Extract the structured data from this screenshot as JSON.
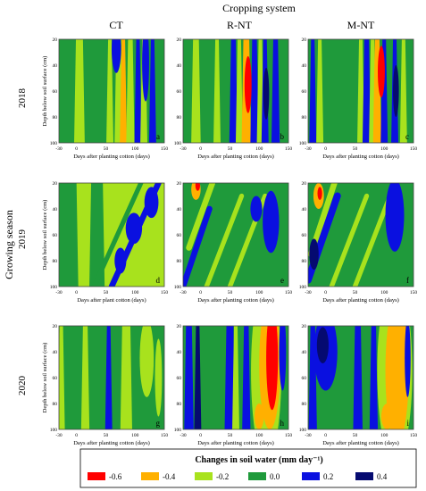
{
  "figure": {
    "title": "Cropping system",
    "columns": [
      "CT",
      "R-NT",
      "M-NT"
    ],
    "row_group_label": "Growing season",
    "rows": [
      "2018",
      "2019",
      "2020"
    ],
    "legend_title": "Changes in soil water (mm day⁻¹)"
  },
  "chart_data": {
    "type": "heatmap",
    "title": "Cropping system",
    "x_range": [
      -30,
      150
    ],
    "y_range": [
      20,
      100
    ],
    "y_reversed": true,
    "x_ticks": [
      "-30",
      "0",
      "50",
      "100",
      "150"
    ],
    "y_ticks": [
      "20",
      "40",
      "60",
      "80",
      "100"
    ],
    "legend": {
      "title": "Changes in soil water (mm day⁻¹)",
      "levels": [
        {
          "label": "-0.6",
          "value": -0.6,
          "color": "#ff0000"
        },
        {
          "label": "-0.4",
          "value": -0.4,
          "color": "#ffb000"
        },
        {
          "label": "-0.2",
          "value": -0.2,
          "color": "#a8e21d"
        },
        {
          "label": "0.0",
          "value": 0.0,
          "color": "#1f9a3b"
        },
        {
          "label": "0.2",
          "value": 0.2,
          "color": "#0a10e0"
        },
        {
          "label": "0.4",
          "value": 0.4,
          "color": "#050a70"
        }
      ]
    },
    "panels": [
      {
        "letter": "a",
        "year": "2018",
        "system": "CT",
        "ylabel": "Depth below soil surface (cm)",
        "xlabel": "Days after planting cotton (days)",
        "background": 0.0,
        "features": [
          {
            "kind": "band",
            "x": 5,
            "w": 12,
            "v": -0.2
          },
          {
            "kind": "band",
            "x": 72,
            "w": 8,
            "v": -0.2
          },
          {
            "kind": "band",
            "x": 80,
            "w": 6,
            "v": -0.4
          },
          {
            "kind": "band",
            "x": 92,
            "w": 8,
            "v": -0.2
          },
          {
            "kind": "band",
            "x": 105,
            "w": 6,
            "v": 0.2
          },
          {
            "kind": "band",
            "x": 115,
            "w": 6,
            "v": -0.2
          },
          {
            "kind": "band",
            "x": 130,
            "w": 6,
            "v": 0.2
          },
          {
            "kind": "band",
            "x": 57,
            "w": 6,
            "v": -0.2
          },
          {
            "kind": "blob",
            "x": 68,
            "y": 28,
            "w": 8,
            "h": 18,
            "v": 0.2
          },
          {
            "kind": "blob",
            "x": 118,
            "y": 38,
            "w": 6,
            "h": 30,
            "v": 0.2
          }
        ]
      },
      {
        "letter": "b",
        "year": "2018",
        "system": "R-NT",
        "ylabel": "",
        "xlabel": "Days after planting cotton (days)",
        "background": 0.0,
        "features": [
          {
            "kind": "band",
            "x": -8,
            "w": 10,
            "v": -0.2
          },
          {
            "kind": "band",
            "x": 28,
            "w": 6,
            "v": -0.2
          },
          {
            "kind": "band",
            "x": 56,
            "w": 8,
            "v": 0.2
          },
          {
            "kind": "band",
            "x": 66,
            "w": 6,
            "v": -0.2
          },
          {
            "kind": "band",
            "x": 78,
            "w": 10,
            "v": -0.4
          },
          {
            "kind": "band",
            "x": 92,
            "w": 8,
            "v": 0.2
          },
          {
            "kind": "band",
            "x": 102,
            "w": 6,
            "v": -0.2
          },
          {
            "kind": "band",
            "x": 110,
            "w": 6,
            "v": 0.2
          },
          {
            "kind": "band",
            "x": 128,
            "w": 8,
            "v": 0.2
          },
          {
            "kind": "blob",
            "x": 81,
            "y": 55,
            "w": 6,
            "h": 22,
            "v": -0.6
          },
          {
            "kind": "blob",
            "x": 112,
            "y": 62,
            "w": 5,
            "h": 20,
            "v": 0.4
          }
        ]
      },
      {
        "letter": "c",
        "year": "2018",
        "system": "M-NT",
        "ylabel": "",
        "xlabel": "Days after planting cotton (days)",
        "background": 0.0,
        "features": [
          {
            "kind": "band",
            "x": -22,
            "w": 6,
            "v": 0.2
          },
          {
            "kind": "band",
            "x": -10,
            "w": 6,
            "v": -0.2
          },
          {
            "kind": "band",
            "x": 60,
            "w": 6,
            "v": -0.2
          },
          {
            "kind": "band",
            "x": 70,
            "w": 8,
            "v": 0.2
          },
          {
            "kind": "band",
            "x": 80,
            "w": 6,
            "v": -0.2
          },
          {
            "kind": "band",
            "x": 88,
            "w": 8,
            "v": -0.4
          },
          {
            "kind": "band",
            "x": 100,
            "w": 6,
            "v": 0.2
          },
          {
            "kind": "band",
            "x": 118,
            "w": 6,
            "v": 0.2
          },
          {
            "kind": "band",
            "x": 133,
            "w": 6,
            "v": -0.2
          },
          {
            "kind": "blob",
            "x": 95,
            "y": 45,
            "w": 6,
            "h": 20,
            "v": -0.6
          },
          {
            "kind": "blob",
            "x": 120,
            "y": 60,
            "w": 5,
            "h": 20,
            "v": 0.4
          }
        ]
      },
      {
        "letter": "d",
        "year": "2019",
        "system": "CT",
        "ylabel": "Depth below soil surface (cm)",
        "xlabel": "Days after plant cotton (days)",
        "background": -0.2,
        "features": [
          {
            "kind": "band",
            "x": -20,
            "w": 40,
            "v": 0.0
          },
          {
            "kind": "band",
            "x": 35,
            "w": 20,
            "v": 0.0
          },
          {
            "kind": "diag",
            "x1": 60,
            "y1": 100,
            "x2": 140,
            "y2": 20,
            "w": 10,
            "v": 0.2
          },
          {
            "kind": "diag",
            "x1": 30,
            "y1": 100,
            "x2": 110,
            "y2": 20,
            "w": 8,
            "v": 0.0
          },
          {
            "kind": "blob",
            "x": 98,
            "y": 55,
            "w": 14,
            "h": 12,
            "v": 0.2
          },
          {
            "kind": "blob",
            "x": 75,
            "y": 80,
            "w": 10,
            "h": 10,
            "v": 0.2
          },
          {
            "kind": "blob",
            "x": 128,
            "y": 35,
            "w": 12,
            "h": 12,
            "v": 0.2
          }
        ]
      },
      {
        "letter": "e",
        "year": "2019",
        "system": "R-NT",
        "ylabel": "",
        "xlabel": "Days after planting cotton (days)",
        "background": 0.0,
        "features": [
          {
            "kind": "diag",
            "x1": -20,
            "y1": 70,
            "x2": 20,
            "y2": 20,
            "w": 10,
            "v": -0.2
          },
          {
            "kind": "blob",
            "x": -8,
            "y": 25,
            "w": 8,
            "h": 8,
            "v": -0.4
          },
          {
            "kind": "blob",
            "x": -5,
            "y": 22,
            "w": 4,
            "h": 4,
            "v": -0.6
          },
          {
            "kind": "diag",
            "x1": -30,
            "y1": 100,
            "x2": 15,
            "y2": 40,
            "w": 10,
            "v": 0.2
          },
          {
            "kind": "diag",
            "x1": 10,
            "y1": 100,
            "x2": 70,
            "y2": 30,
            "w": 8,
            "v": -0.2
          },
          {
            "kind": "diag",
            "x1": 50,
            "y1": 100,
            "x2": 110,
            "y2": 30,
            "w": 8,
            "v": -0.2
          },
          {
            "kind": "blob",
            "x": 120,
            "y": 50,
            "w": 14,
            "h": 24,
            "v": 0.2
          },
          {
            "kind": "blob",
            "x": 95,
            "y": 40,
            "w": 10,
            "h": 10,
            "v": 0.2
          }
        ]
      },
      {
        "letter": "f",
        "year": "2019",
        "system": "M-NT",
        "ylabel": "",
        "xlabel": "Days after planting cotton (days)",
        "background": 0.0,
        "features": [
          {
            "kind": "diag",
            "x1": -25,
            "y1": 75,
            "x2": 15,
            "y2": 20,
            "w": 10,
            "v": -0.2
          },
          {
            "kind": "blob",
            "x": -12,
            "y": 30,
            "w": 9,
            "h": 10,
            "v": -0.4
          },
          {
            "kind": "blob",
            "x": -10,
            "y": 28,
            "w": 4,
            "h": 5,
            "v": -0.6
          },
          {
            "kind": "diag",
            "x1": -30,
            "y1": 95,
            "x2": 20,
            "y2": 30,
            "w": 12,
            "v": 0.2
          },
          {
            "kind": "blob",
            "x": -20,
            "y": 75,
            "w": 8,
            "h": 12,
            "v": 0.4
          },
          {
            "kind": "diag",
            "x1": 10,
            "y1": 100,
            "x2": 70,
            "y2": 30,
            "w": 8,
            "v": -0.2
          },
          {
            "kind": "diag",
            "x1": 50,
            "y1": 100,
            "x2": 110,
            "y2": 30,
            "w": 8,
            "v": -0.2
          },
          {
            "kind": "blob",
            "x": 118,
            "y": 45,
            "w": 16,
            "h": 28,
            "v": 0.2
          }
        ]
      },
      {
        "letter": "g",
        "year": "2020",
        "system": "CT",
        "ylabel": "Depth below soil surface (cm)",
        "xlabel": "Days after planting cotton (days)",
        "background": 0.0,
        "features": [
          {
            "kind": "band",
            "x": -26,
            "w": 6,
            "v": -0.2
          },
          {
            "kind": "band",
            "x": 15,
            "w": 8,
            "v": -0.2
          },
          {
            "kind": "band",
            "x": 55,
            "w": 6,
            "v": 0.2
          },
          {
            "kind": "band",
            "x": 85,
            "w": 14,
            "v": -0.2
          },
          {
            "kind": "blob",
            "x": 120,
            "y": 45,
            "w": 12,
            "h": 30,
            "v": -0.2
          },
          {
            "kind": "blob",
            "x": 140,
            "y": 60,
            "w": 6,
            "h": 30,
            "v": -0.2
          }
        ]
      },
      {
        "letter": "h",
        "year": "2020",
        "system": "R-NT",
        "ylabel": "",
        "xlabel": "Days after planting cotton (days)",
        "background": 0.0,
        "features": [
          {
            "kind": "band",
            "x": -20,
            "w": 10,
            "v": 0.2
          },
          {
            "kind": "band",
            "x": -5,
            "w": 6,
            "v": 0.4
          },
          {
            "kind": "band",
            "x": 50,
            "w": 12,
            "v": 0.2
          },
          {
            "kind": "band",
            "x": 78,
            "w": 8,
            "v": 0.2
          },
          {
            "kind": "band",
            "x": 60,
            "w": 6,
            "v": -0.2
          },
          {
            "kind": "blob",
            "x": 112,
            "y": 55,
            "w": 26,
            "h": 70,
            "v": -0.2
          },
          {
            "kind": "blob",
            "x": 118,
            "y": 50,
            "w": 18,
            "h": 50,
            "v": -0.4
          },
          {
            "kind": "blob",
            "x": 122,
            "y": 45,
            "w": 10,
            "h": 40,
            "v": -0.6
          },
          {
            "kind": "blob",
            "x": 100,
            "y": 90,
            "w": 8,
            "h": 10,
            "v": -0.4
          },
          {
            "kind": "blob",
            "x": 140,
            "y": 40,
            "w": 6,
            "h": 30,
            "v": 0.2
          }
        ]
      },
      {
        "letter": "i",
        "year": "2020",
        "system": "M-NT",
        "ylabel": "",
        "xlabel": "Days after planting cotton (days)",
        "background": 0.0,
        "features": [
          {
            "kind": "band",
            "x": -22,
            "w": 8,
            "v": 0.2
          },
          {
            "kind": "blob",
            "x": 0,
            "y": 40,
            "w": 20,
            "h": 30,
            "v": 0.2
          },
          {
            "kind": "blob",
            "x": -5,
            "y": 35,
            "w": 10,
            "h": 14,
            "v": 0.4
          },
          {
            "kind": "band",
            "x": 55,
            "w": 10,
            "v": 0.2
          },
          {
            "kind": "band",
            "x": 82,
            "w": 8,
            "v": 0.2
          },
          {
            "kind": "blob",
            "x": 118,
            "y": 55,
            "w": 30,
            "h": 70,
            "v": -0.2
          },
          {
            "kind": "blob",
            "x": 122,
            "y": 55,
            "w": 20,
            "h": 55,
            "v": -0.4
          },
          {
            "kind": "blob",
            "x": 105,
            "y": 90,
            "w": 10,
            "h": 10,
            "v": -0.4
          },
          {
            "kind": "blob",
            "x": 140,
            "y": 45,
            "w": 5,
            "h": 30,
            "v": 0.2
          }
        ]
      }
    ]
  }
}
